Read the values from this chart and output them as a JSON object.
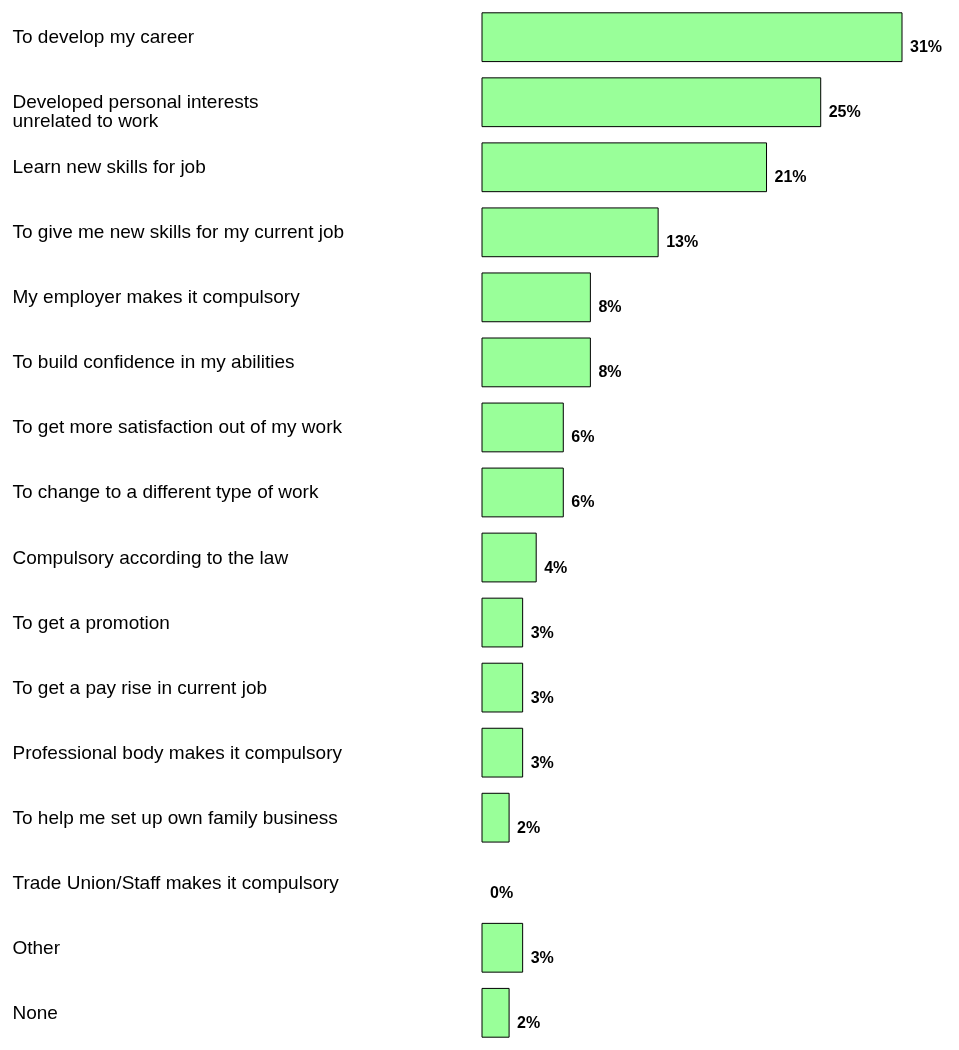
{
  "chart_data": {
    "type": "bar",
    "orientation": "horizontal",
    "grid": false,
    "categories": [
      "To develop my career",
      "Developed personal interests\nunrelated to work",
      "Learn new skills for job",
      "To give me new skills for my current job",
      "My employer makes it compulsory",
      "To build confidence in my abilities",
      "To get more satisfaction out of my work",
      "To change to a different type of work",
      "Compulsory according to the law",
      "To get a promotion",
      "To get a pay rise in current job",
      "Professional body makes it compulsory",
      "To help me set up own family business",
      "Trade Union/Staff makes it compulsory",
      "Other",
      "None"
    ],
    "values": [
      31,
      25,
      21,
      13,
      8,
      8,
      6,
      6,
      4,
      3,
      3,
      3,
      2,
      0,
      3,
      2
    ],
    "value_labels": [
      "31%",
      "25%",
      "21%",
      "13%",
      "8%",
      "8%",
      "6%",
      "6%",
      "4%",
      "3%",
      "3%",
      "3%",
      "2%",
      "0%",
      "3%",
      "2%"
    ],
    "color": "#99ff99"
  }
}
